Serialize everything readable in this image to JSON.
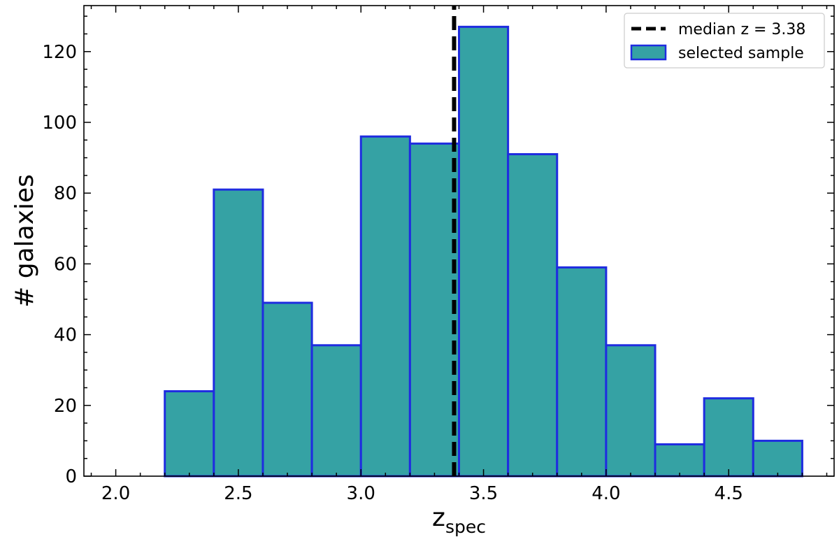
{
  "chart_data": {
    "type": "bar",
    "title": "",
    "xlabel": "z",
    "xlabel_subscript": "spec",
    "ylabel": "# galaxies",
    "bin_edges": [
      2.0,
      2.2,
      2.4,
      2.6,
      2.8,
      3.0,
      3.2,
      3.4,
      3.6,
      3.8,
      4.0,
      4.2,
      4.4,
      4.6,
      4.8
    ],
    "values": [
      0,
      24,
      81,
      49,
      37,
      96,
      94,
      127,
      91,
      59,
      37,
      9,
      22,
      10
    ],
    "xlim": [
      1.87,
      4.93
    ],
    "ylim": [
      0,
      133
    ],
    "xticks": [
      "2.0",
      "2.5",
      "3.0",
      "3.5",
      "4.0",
      "4.5"
    ],
    "yticks": [
      "0",
      "20",
      "40",
      "60",
      "80",
      "100",
      "120"
    ],
    "median": 3.38,
    "legend": {
      "position": "top-right",
      "median_label": "median z =  3.38",
      "sample_label": "selected sample"
    },
    "colors": {
      "bar_fill": "#35a2a4",
      "bar_edge": "#1f2ce0",
      "median_line": "#000000"
    },
    "grid": false
  }
}
